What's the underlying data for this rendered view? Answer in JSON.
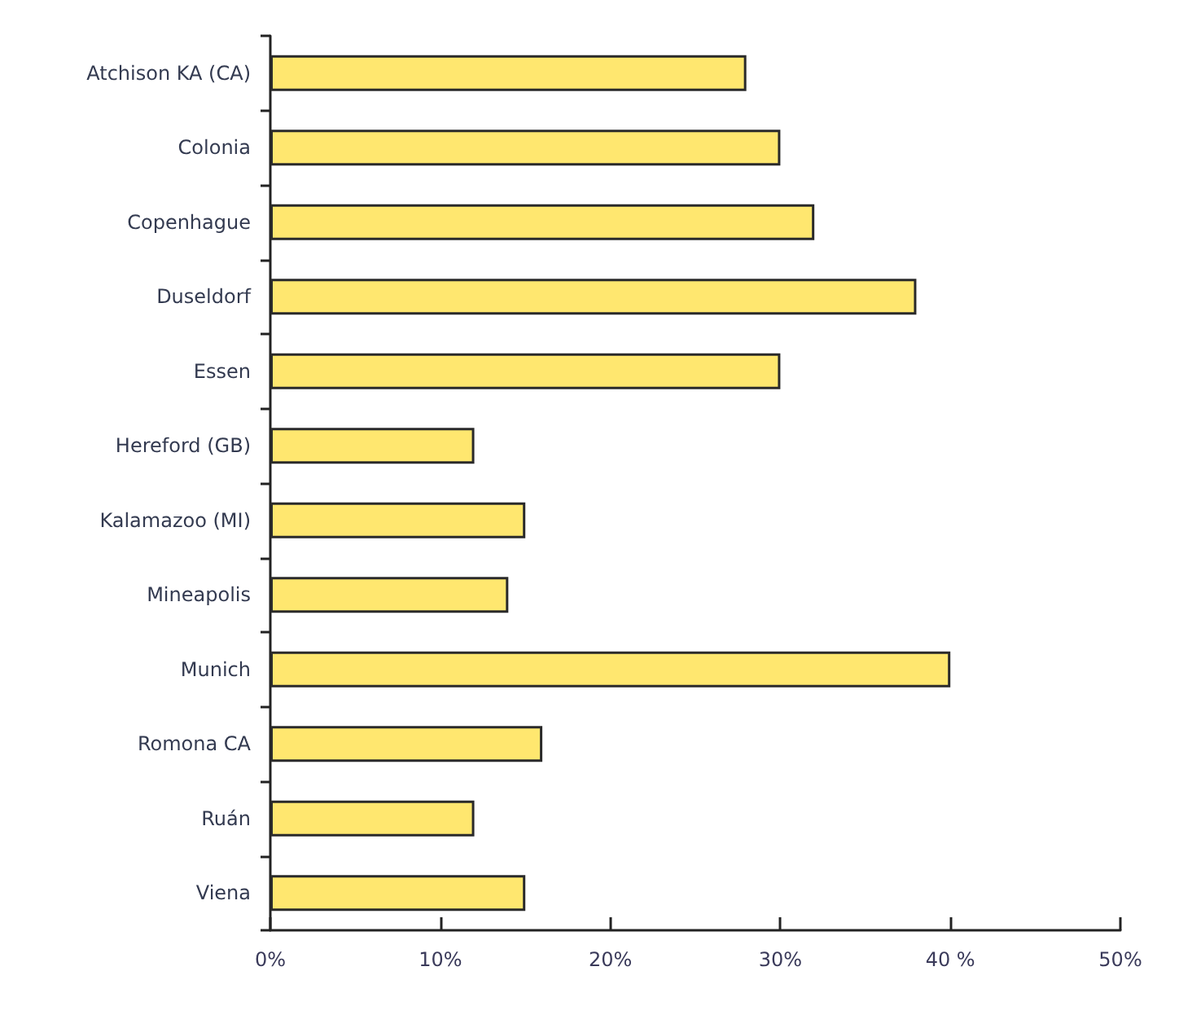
{
  "chart_data": {
    "type": "bar",
    "orientation": "horizontal",
    "categories": [
      "Atchison KA (CA)",
      "Colonia",
      "Copenhague",
      "Duseldorf",
      "Essen",
      "Hereford (GB)",
      "Kalamazoo (MI)",
      "Mineapolis",
      "Munich",
      "Romona CA",
      "Ruán",
      "Viena"
    ],
    "values": [
      28,
      30,
      32,
      38,
      30,
      12,
      15,
      14,
      40,
      16,
      12,
      15
    ],
    "color": "#ffe76f",
    "xlim": [
      0,
      50
    ],
    "xticks": [
      {
        "value": 0,
        "label": "0%"
      },
      {
        "value": 10,
        "label": "10%"
      },
      {
        "value": 20,
        "label": "20%"
      },
      {
        "value": 30,
        "label": "30%"
      },
      {
        "value": 40,
        "label": "40 %"
      },
      {
        "value": 50,
        "label": "50%"
      }
    ],
    "grid": false
  }
}
